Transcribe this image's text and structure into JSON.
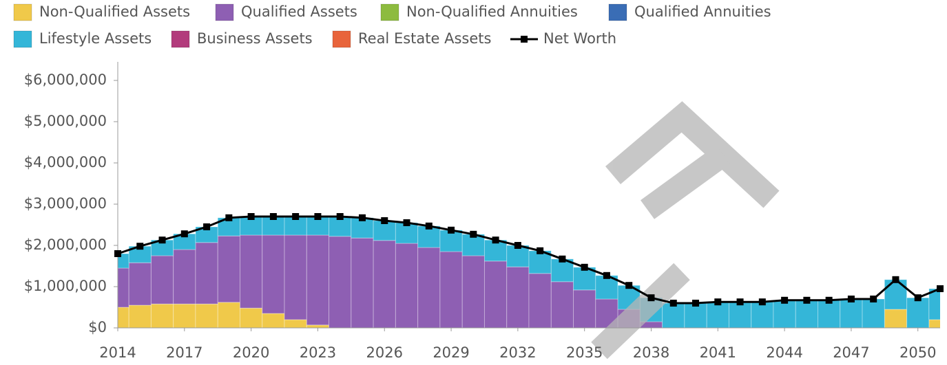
{
  "chart_data": {
    "type": "bar",
    "stacked": true,
    "x": [
      2014,
      2015,
      2016,
      2017,
      2018,
      2019,
      2020,
      2021,
      2022,
      2023,
      2024,
      2025,
      2026,
      2027,
      2028,
      2029,
      2030,
      2031,
      2032,
      2033,
      2034,
      2035,
      2036,
      2037,
      2038,
      2039,
      2040,
      2041,
      2042,
      2043,
      2044,
      2045,
      2046,
      2047,
      2048,
      2049,
      2050,
      2051
    ],
    "xlim": [
      2014,
      2051
    ],
    "xticks": [
      2014,
      2017,
      2020,
      2023,
      2026,
      2029,
      2032,
      2035,
      2038,
      2041,
      2044,
      2047,
      2050
    ],
    "ylim": [
      0,
      6000000
    ],
    "yticks": [
      {
        "value": 0,
        "label": "$0"
      },
      {
        "value": 1000000,
        "label": "$1,000,000"
      },
      {
        "value": 2000000,
        "label": "$2,000,000"
      },
      {
        "value": 3000000,
        "label": "$3,000,000"
      },
      {
        "value": 4000000,
        "label": "$4,000,000"
      },
      {
        "value": 5000000,
        "label": "$5,000,000"
      },
      {
        "value": 6000000,
        "label": "$6,000,000"
      }
    ],
    "series": [
      {
        "name": "Non-Qualified Assets",
        "color": "#f0c94a",
        "values": [
          500000,
          550000,
          580000,
          580000,
          580000,
          620000,
          480000,
          350000,
          200000,
          70000,
          0,
          0,
          0,
          0,
          0,
          0,
          0,
          0,
          0,
          0,
          0,
          0,
          0,
          0,
          0,
          0,
          0,
          0,
          0,
          0,
          0,
          0,
          0,
          0,
          0,
          450000,
          0,
          200000
        ]
      },
      {
        "name": "Qualified Assets",
        "color": "#8e5fb3",
        "values": [
          950000,
          1030000,
          1170000,
          1320000,
          1490000,
          1610000,
          1770000,
          1900000,
          2050000,
          2180000,
          2220000,
          2180000,
          2120000,
          2050000,
          1950000,
          1850000,
          1750000,
          1620000,
          1480000,
          1320000,
          1120000,
          920000,
          700000,
          450000,
          150000,
          0,
          0,
          0,
          0,
          0,
          0,
          0,
          0,
          0,
          0,
          0,
          0,
          0
        ]
      },
      {
        "name": "Non-Qualified Annuities",
        "color": "#8dbb3f",
        "values": [
          0,
          0,
          0,
          0,
          0,
          0,
          0,
          0,
          0,
          0,
          0,
          0,
          0,
          0,
          0,
          0,
          0,
          0,
          0,
          0,
          0,
          0,
          0,
          0,
          0,
          0,
          0,
          0,
          0,
          0,
          0,
          0,
          0,
          0,
          0,
          0,
          0,
          0
        ]
      },
      {
        "name": "Qualified Annuities",
        "color": "#3a6db5",
        "values": [
          0,
          0,
          0,
          0,
          0,
          0,
          0,
          0,
          0,
          0,
          0,
          0,
          0,
          0,
          0,
          0,
          0,
          0,
          0,
          0,
          0,
          0,
          0,
          0,
          0,
          0,
          0,
          0,
          0,
          0,
          0,
          0,
          0,
          0,
          0,
          0,
          0,
          0
        ]
      },
      {
        "name": "Lifestyle Assets",
        "color": "#34b6d8",
        "values": [
          350000,
          400000,
          380000,
          380000,
          380000,
          440000,
          450000,
          450000,
          450000,
          450000,
          480000,
          490000,
          480000,
          500000,
          520000,
          520000,
          520000,
          510000,
          520000,
          550000,
          550000,
          550000,
          570000,
          580000,
          580000,
          600000,
          600000,
          630000,
          630000,
          630000,
          670000,
          670000,
          670000,
          700000,
          700000,
          720000,
          730000,
          750000
        ]
      },
      {
        "name": "Business Assets",
        "color": "#b23b7c",
        "values": [
          0,
          0,
          0,
          0,
          0,
          0,
          0,
          0,
          0,
          0,
          0,
          0,
          0,
          0,
          0,
          0,
          0,
          0,
          0,
          0,
          0,
          0,
          0,
          0,
          0,
          0,
          0,
          0,
          0,
          0,
          0,
          0,
          0,
          0,
          0,
          0,
          0,
          0
        ]
      },
      {
        "name": "Real Estate Assets",
        "color": "#e8643b",
        "values": [
          0,
          0,
          0,
          0,
          0,
          0,
          0,
          0,
          0,
          0,
          0,
          0,
          0,
          0,
          0,
          0,
          0,
          0,
          0,
          0,
          0,
          0,
          0,
          0,
          0,
          0,
          0,
          0,
          0,
          0,
          0,
          0,
          0,
          0,
          0,
          0,
          0,
          0
        ]
      },
      {
        "name": "Net Worth",
        "color": "#000000",
        "type": "line",
        "values": [
          1800000,
          1980000,
          2130000,
          2280000,
          2450000,
          2670000,
          2700000,
          2700000,
          2700000,
          2700000,
          2700000,
          2670000,
          2600000,
          2550000,
          2470000,
          2370000,
          2270000,
          2130000,
          2000000,
          1870000,
          1670000,
          1470000,
          1270000,
          1030000,
          730000,
          600000,
          600000,
          630000,
          630000,
          630000,
          670000,
          670000,
          670000,
          700000,
          700000,
          1170000,
          730000,
          950000
        ]
      }
    ]
  }
}
